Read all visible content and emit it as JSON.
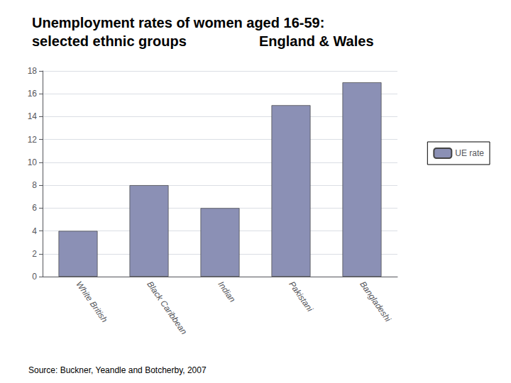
{
  "chart_data": {
    "type": "bar",
    "title": "Unemployment rates of women aged 16-59:\nselected ethnic groups",
    "subtitle": "England & Wales",
    "categories": [
      "White British",
      "Black Caribbean",
      "Indian",
      "Pakistani",
      "Bangladeshi"
    ],
    "series": [
      {
        "name": "UE rate",
        "color": "#8B90B5",
        "values": [
          4.0,
          8.0,
          6.0,
          15.0,
          17.0
        ]
      }
    ],
    "ylim": [
      0,
      18
    ],
    "yticks": [
      0,
      2,
      4,
      6,
      8,
      10,
      12,
      14,
      16,
      18
    ],
    "grid": true,
    "legend": "right",
    "annotations": [
      "Source: Buckner, Yeandle and Botcherby, 2007"
    ]
  }
}
